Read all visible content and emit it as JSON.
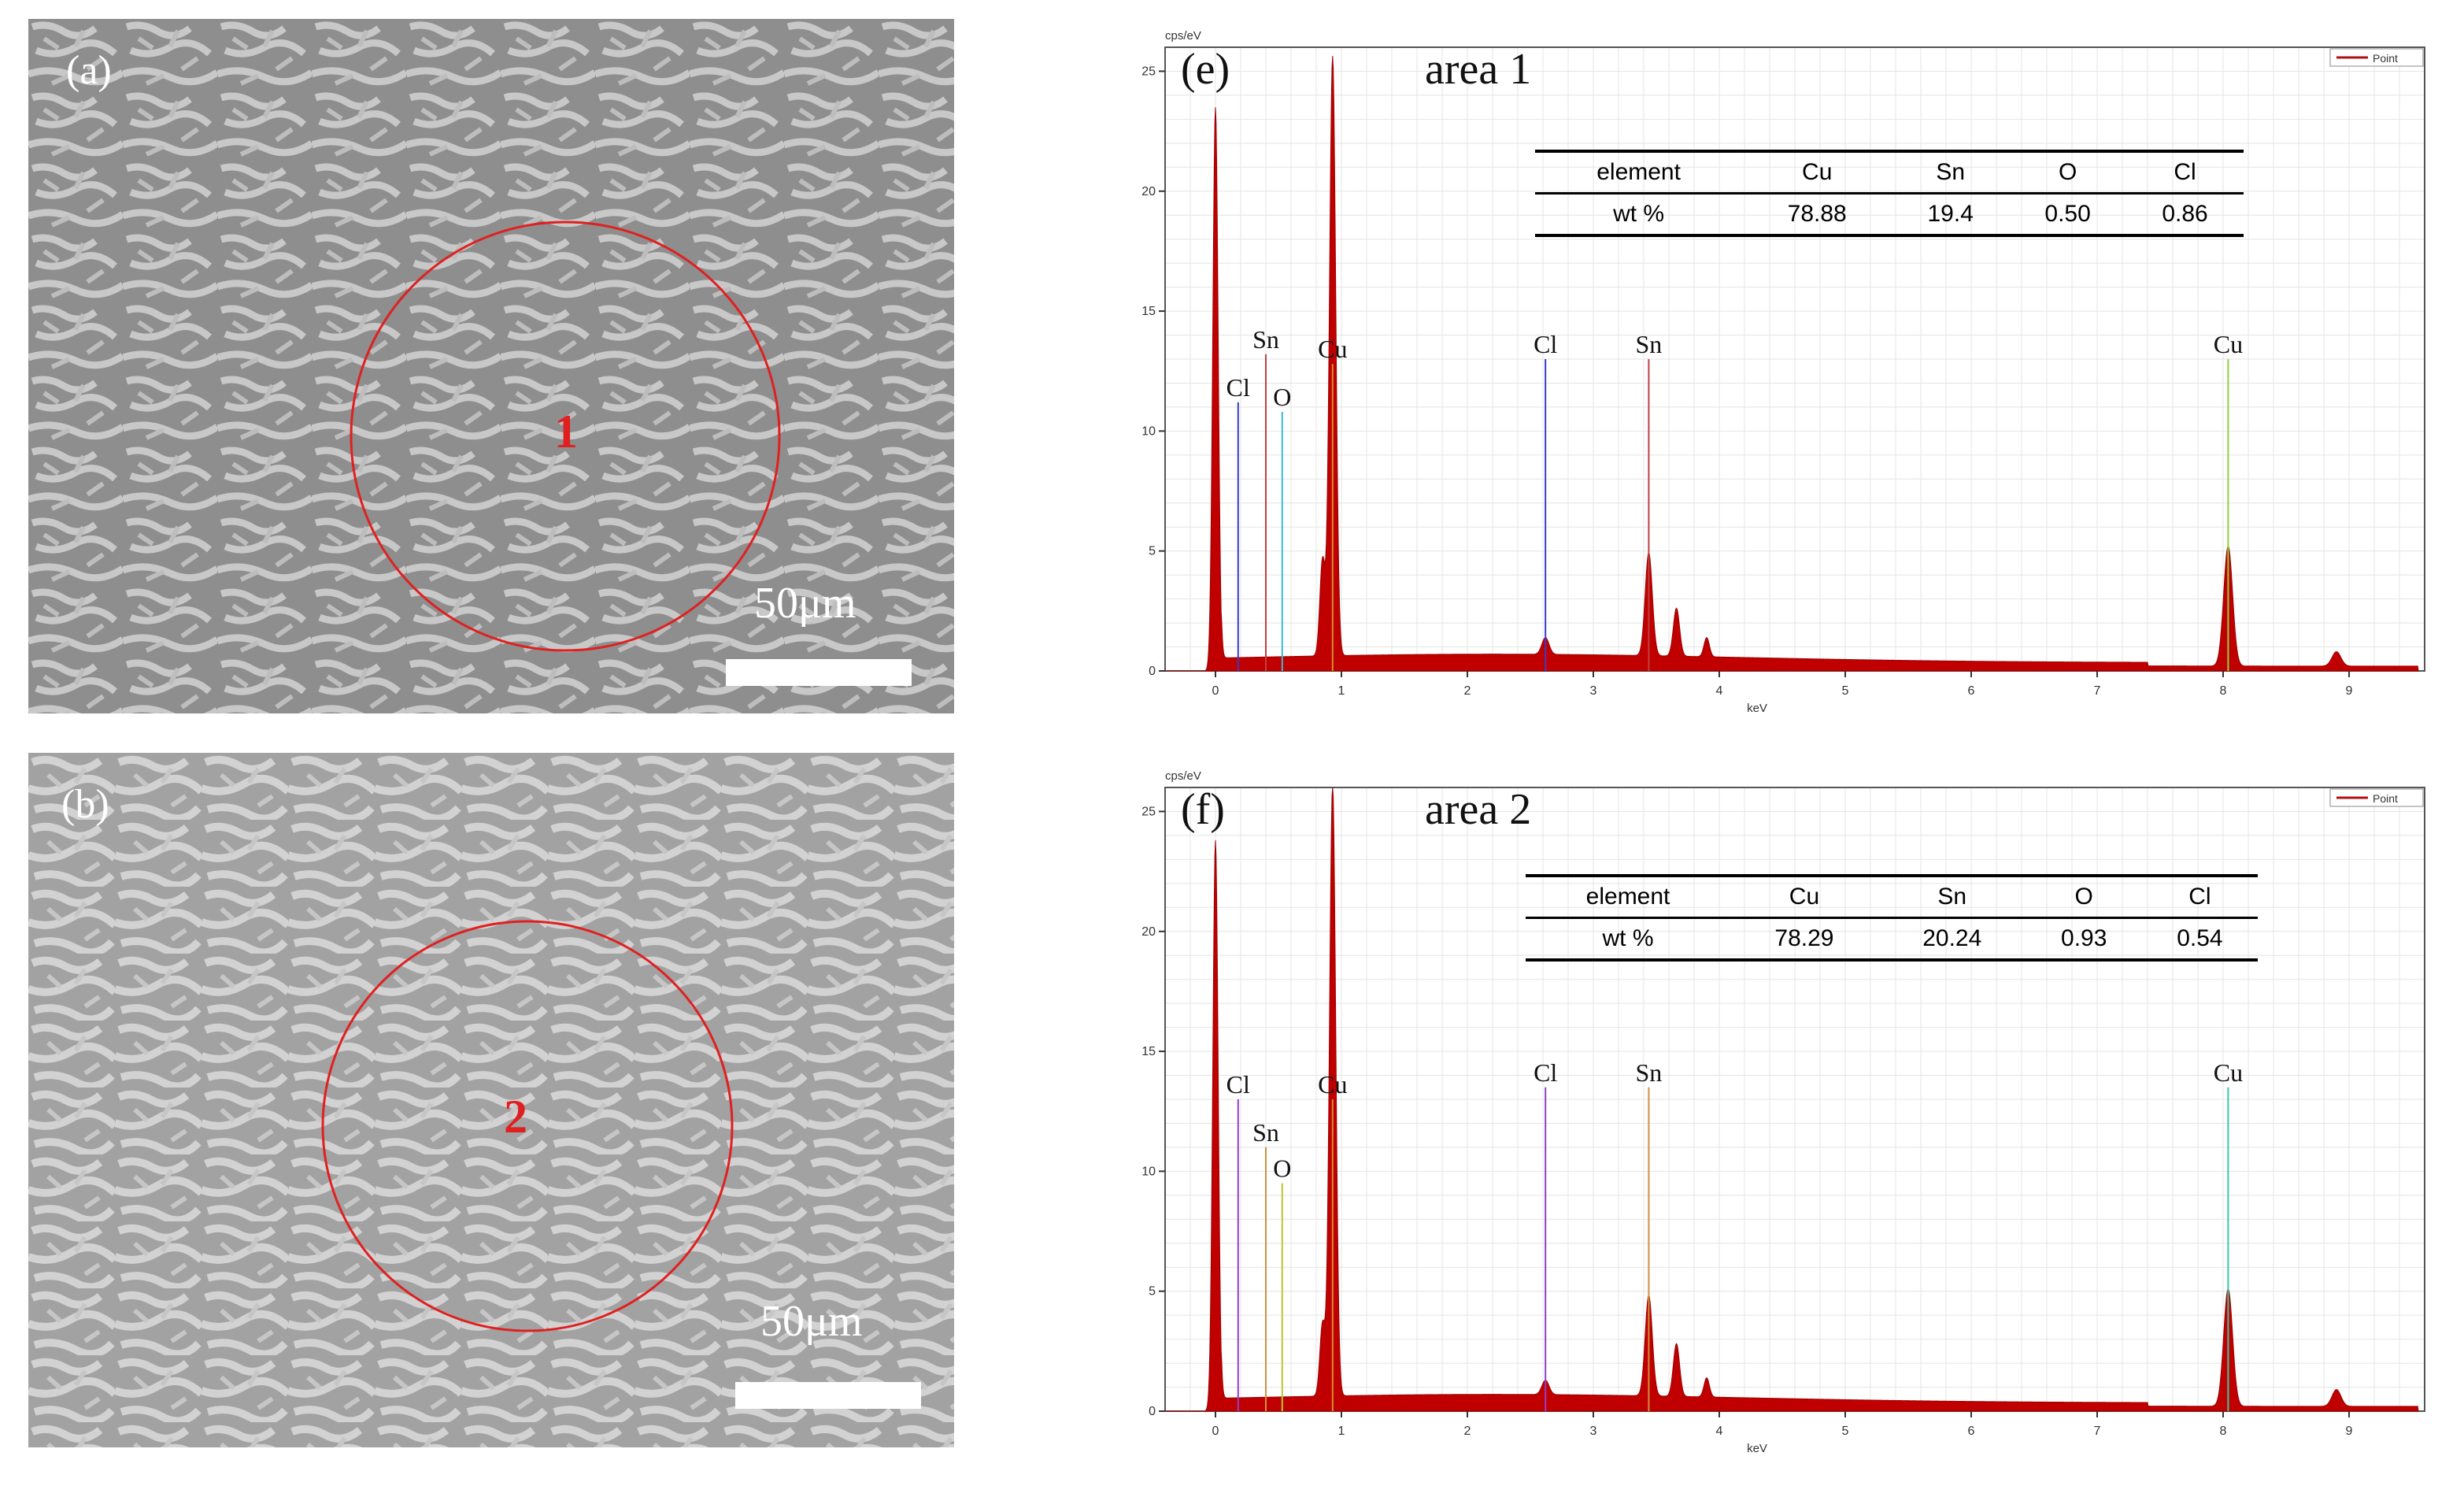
{
  "sem_panels": [
    {
      "id": "a",
      "label": "(a)",
      "area_label": "1",
      "scale_text": "50μm"
    },
    {
      "id": "b",
      "label": "(b)",
      "area_label": "2",
      "scale_text": "50μm"
    }
  ],
  "chart_data": [
    {
      "id": "e",
      "type": "line",
      "panel_label": "(e)",
      "title": "area 1",
      "ylabel": "cps/eV",
      "xlabel": "keV",
      "legend": "Point",
      "xlim": [
        -0.4,
        9.6
      ],
      "ylim": [
        0,
        26
      ],
      "xticks": [
        0,
        1,
        2,
        3,
        4,
        5,
        6,
        7,
        8,
        9
      ],
      "yticks": [
        0,
        5,
        10,
        15,
        20,
        25
      ],
      "table": {
        "headers": [
          "element",
          "Cu",
          "Sn",
          "O",
          "Cl"
        ],
        "row_label": "wt %",
        "values": [
          "78.88",
          "19.4",
          "0.50",
          "0.86"
        ]
      },
      "peaks": [
        {
          "x": 0.0,
          "y": 23.5,
          "w": 0.03
        },
        {
          "x": 0.93,
          "y": 25.0,
          "w": 0.035
        },
        {
          "x": 0.85,
          "y": 4.0,
          "w": 0.03
        },
        {
          "x": 3.44,
          "y": 4.3,
          "w": 0.04
        },
        {
          "x": 3.66,
          "y": 2.0,
          "w": 0.035
        },
        {
          "x": 3.9,
          "y": 0.8,
          "w": 0.03
        },
        {
          "x": 2.62,
          "y": 0.7,
          "w": 0.04
        },
        {
          "x": 8.04,
          "y": 5.0,
          "w": 0.05
        },
        {
          "x": 8.9,
          "y": 0.6,
          "w": 0.05
        }
      ],
      "markers": [
        {
          "element": "Cl",
          "x": 0.18,
          "y": 11.2,
          "color": "#3a3ac8"
        },
        {
          "element": "Sn",
          "x": 0.4,
          "y": 13.2,
          "color": "#c04040"
        },
        {
          "element": "O",
          "x": 0.53,
          "y": 10.8,
          "color": "#3bbbd0"
        },
        {
          "element": "Cu",
          "x": 0.93,
          "y": 12.8,
          "color": "#d49030"
        },
        {
          "element": "Cl",
          "x": 2.62,
          "y": 13.0,
          "color": "#3a3ac8"
        },
        {
          "element": "Sn",
          "x": 3.44,
          "y": 13.0,
          "color": "#c04040"
        },
        {
          "element": "Cu",
          "x": 8.04,
          "y": 13.0,
          "color": "#8fd040"
        }
      ]
    },
    {
      "id": "f",
      "type": "line",
      "panel_label": "(f)",
      "title": "area 2",
      "ylabel": "cps/eV",
      "xlabel": "keV",
      "legend": "Point",
      "xlim": [
        -0.4,
        9.6
      ],
      "ylim": [
        0,
        26
      ],
      "xticks": [
        0,
        1,
        2,
        3,
        4,
        5,
        6,
        7,
        8,
        9
      ],
      "yticks": [
        0,
        5,
        10,
        15,
        20,
        25
      ],
      "table": {
        "headers": [
          "element",
          "Cu",
          "Sn",
          "O",
          "Cl"
        ],
        "row_label": "wt %",
        "values": [
          "78.29",
          "20.24",
          "0.93",
          "0.54"
        ]
      },
      "peaks": [
        {
          "x": 0.0,
          "y": 23.8,
          "w": 0.03
        },
        {
          "x": 0.93,
          "y": 25.5,
          "w": 0.035
        },
        {
          "x": 0.85,
          "y": 3.0,
          "w": 0.03
        },
        {
          "x": 3.44,
          "y": 4.2,
          "w": 0.04
        },
        {
          "x": 3.66,
          "y": 2.2,
          "w": 0.035
        },
        {
          "x": 3.9,
          "y": 0.8,
          "w": 0.03
        },
        {
          "x": 2.62,
          "y": 0.6,
          "w": 0.04
        },
        {
          "x": 8.04,
          "y": 4.9,
          "w": 0.05
        },
        {
          "x": 8.9,
          "y": 0.7,
          "w": 0.05
        }
      ],
      "markers": [
        {
          "element": "Cl",
          "x": 0.18,
          "y": 13.0,
          "color": "#9040c8"
        },
        {
          "element": "Sn",
          "x": 0.4,
          "y": 11.0,
          "color": "#d09040"
        },
        {
          "element": "O",
          "x": 0.53,
          "y": 9.5,
          "color": "#b8c830"
        },
        {
          "element": "Cu",
          "x": 0.93,
          "y": 13.0,
          "color": "#d49030"
        },
        {
          "element": "Cl",
          "x": 2.62,
          "y": 13.5,
          "color": "#9040c8"
        },
        {
          "element": "Sn",
          "x": 3.44,
          "y": 13.5,
          "color": "#d09040"
        },
        {
          "element": "Cu",
          "x": 8.04,
          "y": 13.5,
          "color": "#3bc8a0"
        }
      ]
    }
  ]
}
